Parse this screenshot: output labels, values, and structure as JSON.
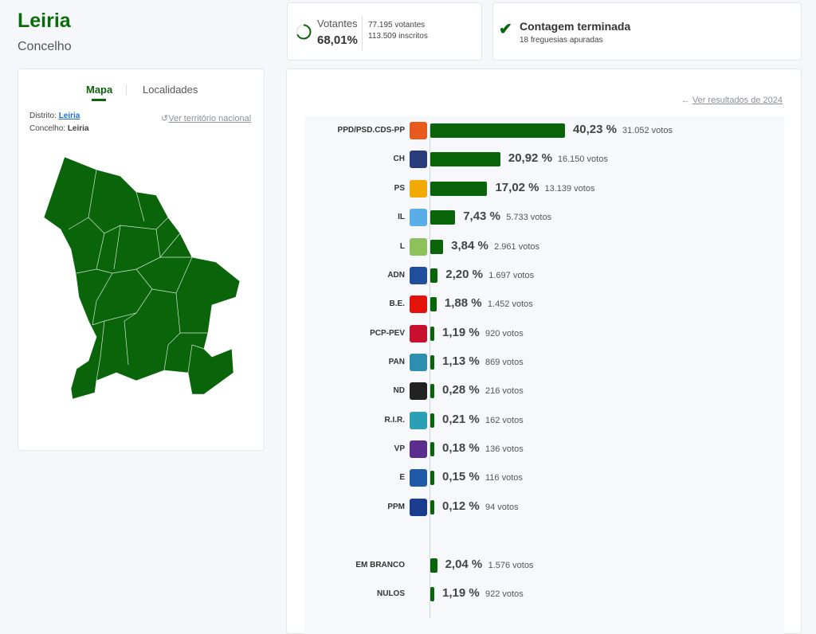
{
  "header": {
    "title": "Leiria",
    "subtitle": "Concelho"
  },
  "turnout": {
    "label": "Votantes",
    "percent": "68,01%",
    "percent_value": 68.01,
    "voters": "77.195 votantes",
    "registered": "113.509 inscritos"
  },
  "status": {
    "title": "Contagem terminada",
    "detail": "18 freguesias apuradas"
  },
  "left_panel": {
    "tabs": [
      {
        "label": "Mapa",
        "active": true
      },
      {
        "label": "Localidades",
        "active": false
      }
    ],
    "district_label": "Distrito:",
    "district_value": "Leiria",
    "council_label": "Concelho:",
    "council_value": "Leiria",
    "national_link": "Ver território nacional"
  },
  "results": {
    "back_link": "Ver resultados de 2024"
  },
  "colors": {
    "accent": "#0a640a"
  },
  "chart_data": {
    "type": "bar",
    "orientation": "horizontal",
    "categories": [
      "PPD/PSD.CDS-PP",
      "CH",
      "PS",
      "IL",
      "L",
      "ADN",
      "B.E.",
      "PCP-PEV",
      "PAN",
      "ND",
      "R.I.R.",
      "VP",
      "E",
      "PPM",
      "EM BRANCO",
      "NULOS"
    ],
    "values": [
      40.23,
      20.92,
      17.02,
      7.43,
      3.84,
      2.2,
      1.88,
      1.19,
      1.13,
      0.28,
      0.21,
      0.18,
      0.15,
      0.12,
      2.04,
      1.19
    ],
    "pct_labels": [
      "40,23 %",
      "20,92 %",
      "17,02 %",
      "7,43 %",
      "3,84 %",
      "2,20 %",
      "1,88 %",
      "1,19 %",
      "1,13 %",
      "0,28 %",
      "0,21 %",
      "0,18 %",
      "0,15 %",
      "0,12 %",
      "2,04 %",
      "1,19 %"
    ],
    "votes": [
      "31.052 votos",
      "16.150 votos",
      "13.139 votos",
      "5.733 votos",
      "2.961 votos",
      "1.697 votos",
      "1.452 votos",
      "920 votos",
      "869 votos",
      "216 votos",
      "162 votos",
      "136 votos",
      "116 votos",
      "94 votos",
      "1.576 votos",
      "922 votos"
    ],
    "logo_colors": [
      "#e85a1b",
      "#2a3d7a",
      "#f2a900",
      "#5aaee8",
      "#8dc15a",
      "#1f4f9c",
      "#e3120b",
      "#c8102e",
      "#2d8fb0",
      "#222222",
      "#2a9fb5",
      "#5b2d8e",
      "#1f5aa6",
      "#1a3d8f"
    ]
  }
}
